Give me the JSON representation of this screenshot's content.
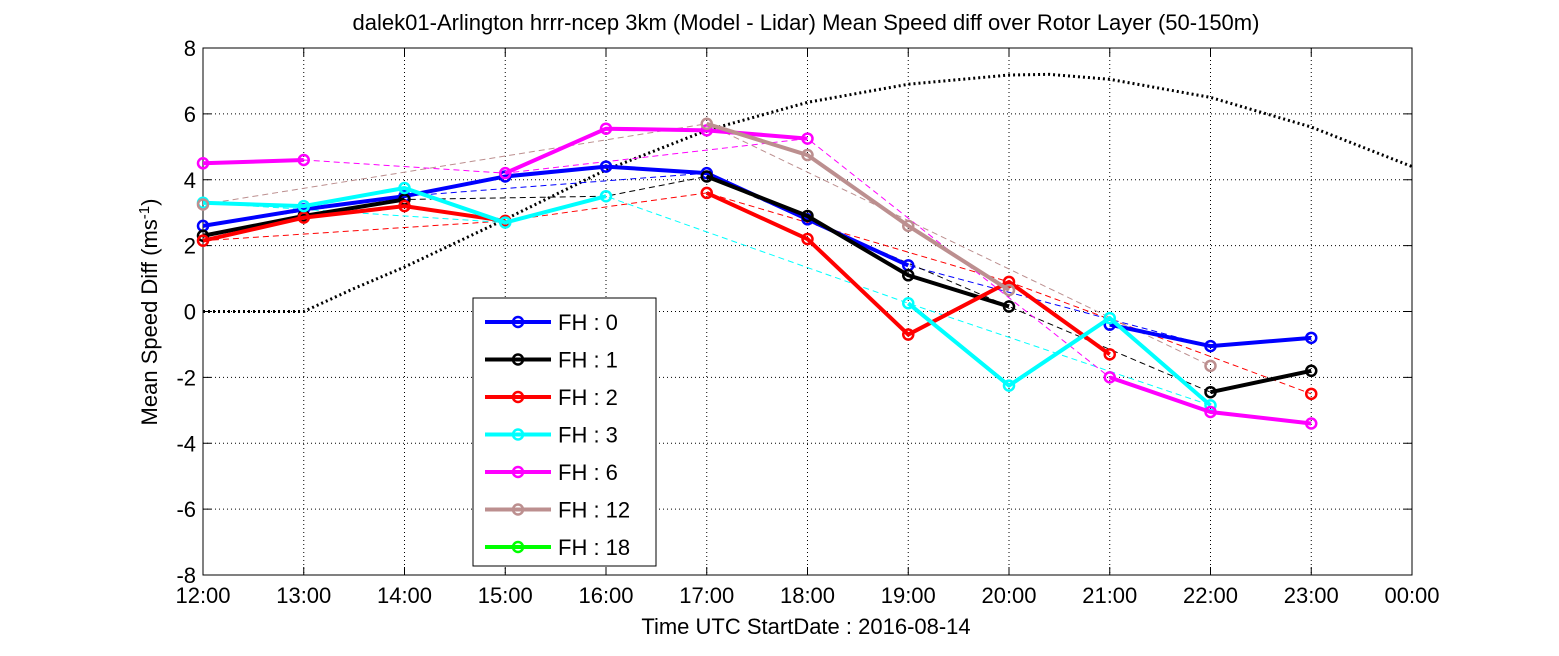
{
  "chart_data": {
    "type": "line",
    "title": "dalek01-Arlington hrrr-ncep 3km (Model - Lidar) Mean Speed diff over Rotor Layer (50-150m)",
    "xlabel": "Time UTC    StartDate : 2016-08-14",
    "ylabel": "Mean Speed Diff (ms-1)",
    "ylabel_main": "Mean Speed Diff (ms",
    "ylabel_sup": "-1",
    "ylabel_close": ")",
    "xlim": [
      12,
      24
    ],
    "ylim": [
      -8,
      8
    ],
    "x_ticks": [
      12,
      13,
      14,
      15,
      16,
      17,
      18,
      19,
      20,
      21,
      22,
      23,
      24
    ],
    "x_tick_labels": [
      "12:00",
      "13:00",
      "14:00",
      "15:00",
      "16:00",
      "17:00",
      "18:00",
      "19:00",
      "20:00",
      "21:00",
      "22:00",
      "23:00",
      "00:00"
    ],
    "y_ticks": [
      -8,
      -6,
      -4,
      -2,
      0,
      2,
      4,
      6,
      8
    ],
    "y_tick_labels": [
      "-8",
      "-6",
      "-4",
      "-2",
      "0",
      "2",
      "4",
      "6",
      "8"
    ],
    "grid": true,
    "legend_position": "lower-left",
    "series": [
      {
        "name": "FH : 0",
        "color": "#0000ff",
        "x": [
          12,
          13,
          14,
          15,
          16,
          17,
          18,
          19,
          20,
          21,
          22,
          23
        ],
        "values": [
          2.6,
          3.1,
          3.5,
          4.1,
          4.4,
          4.2,
          2.8,
          1.4,
          null,
          -0.4,
          -1.05,
          -0.8
        ],
        "trend": [
          [
            12,
            2.6
          ],
          [
            14,
            3.5
          ],
          [
            17,
            4.2
          ],
          [
            19,
            1.4
          ],
          [
            22,
            -1.05
          ]
        ]
      },
      {
        "name": "FH : 1",
        "color": "#000000",
        "x": [
          12,
          13,
          14,
          15,
          16,
          17,
          18,
          19,
          20,
          21,
          22,
          23
        ],
        "values": [
          2.3,
          2.9,
          3.4,
          null,
          null,
          4.1,
          2.9,
          1.1,
          0.15,
          null,
          -2.45,
          -1.8
        ],
        "trend": [
          [
            12,
            2.3
          ],
          [
            14,
            3.4
          ],
          [
            15,
            3.45
          ],
          [
            16,
            3.5
          ],
          [
            17,
            4.1
          ],
          [
            20,
            0.15
          ],
          [
            22,
            -2.45
          ]
        ]
      },
      {
        "name": "FH : 2",
        "color": "#ff0000",
        "x": [
          12,
          13,
          14,
          15,
          16,
          17,
          18,
          19,
          20,
          21,
          22,
          23
        ],
        "values": [
          2.15,
          2.85,
          3.2,
          2.75,
          null,
          3.6,
          2.2,
          -0.7,
          0.9,
          -1.3,
          null,
          -2.5
        ],
        "trend": [
          [
            12,
            2.15
          ],
          [
            15,
            2.75
          ],
          [
            17,
            3.6
          ],
          [
            20,
            0.9
          ],
          [
            23,
            -2.5
          ]
        ]
      },
      {
        "name": "FH : 3",
        "color": "#00ffff",
        "x": [
          12,
          13,
          14,
          15,
          16,
          17,
          18,
          19,
          20,
          21,
          22,
          23
        ],
        "values": [
          3.3,
          3.2,
          3.75,
          2.7,
          3.5,
          null,
          null,
          0.25,
          -2.25,
          -0.2,
          -2.85,
          null
        ],
        "trend": [
          [
            12,
            3.3
          ],
          [
            15,
            2.7
          ],
          [
            16,
            3.5
          ],
          [
            19,
            0.25
          ],
          [
            22,
            -2.85
          ]
        ]
      },
      {
        "name": "FH : 6",
        "color": "#ff00ff",
        "x": [
          12,
          13,
          14,
          15,
          16,
          17,
          18,
          19,
          20,
          21,
          22,
          23
        ],
        "values": [
          4.5,
          4.6,
          null,
          4.2,
          5.55,
          5.5,
          5.25,
          null,
          null,
          -2.0,
          -3.05,
          -3.4
        ],
        "trend": [
          [
            13,
            4.6
          ],
          [
            15,
            4.2
          ],
          [
            18,
            5.25
          ],
          [
            21,
            -2.0
          ]
        ]
      },
      {
        "name": "FH : 12",
        "color": "#bc8f8f",
        "x": [
          12,
          13,
          14,
          15,
          16,
          17,
          18,
          19,
          20,
          21,
          22,
          23
        ],
        "values": [
          3.25,
          null,
          null,
          null,
          null,
          5.7,
          4.75,
          2.6,
          0.65,
          null,
          -1.65,
          null
        ],
        "trend": [
          [
            12,
            3.25
          ],
          [
            17,
            5.7
          ],
          [
            22,
            -1.65
          ]
        ]
      },
      {
        "name": "FH : 18",
        "color": "#00ff00",
        "x": [],
        "values": [],
        "trend": []
      }
    ],
    "reference_curve": {
      "style": "dotted",
      "color": "#000000",
      "x": [
        12,
        13,
        13.5,
        14,
        15,
        16,
        17,
        18,
        19,
        20,
        20.4,
        21,
        22,
        23,
        24
      ],
      "values": [
        0,
        0,
        0.7,
        1.35,
        2.8,
        4.3,
        5.5,
        6.35,
        6.9,
        7.18,
        7.2,
        7.05,
        6.5,
        5.6,
        4.4
      ]
    }
  }
}
